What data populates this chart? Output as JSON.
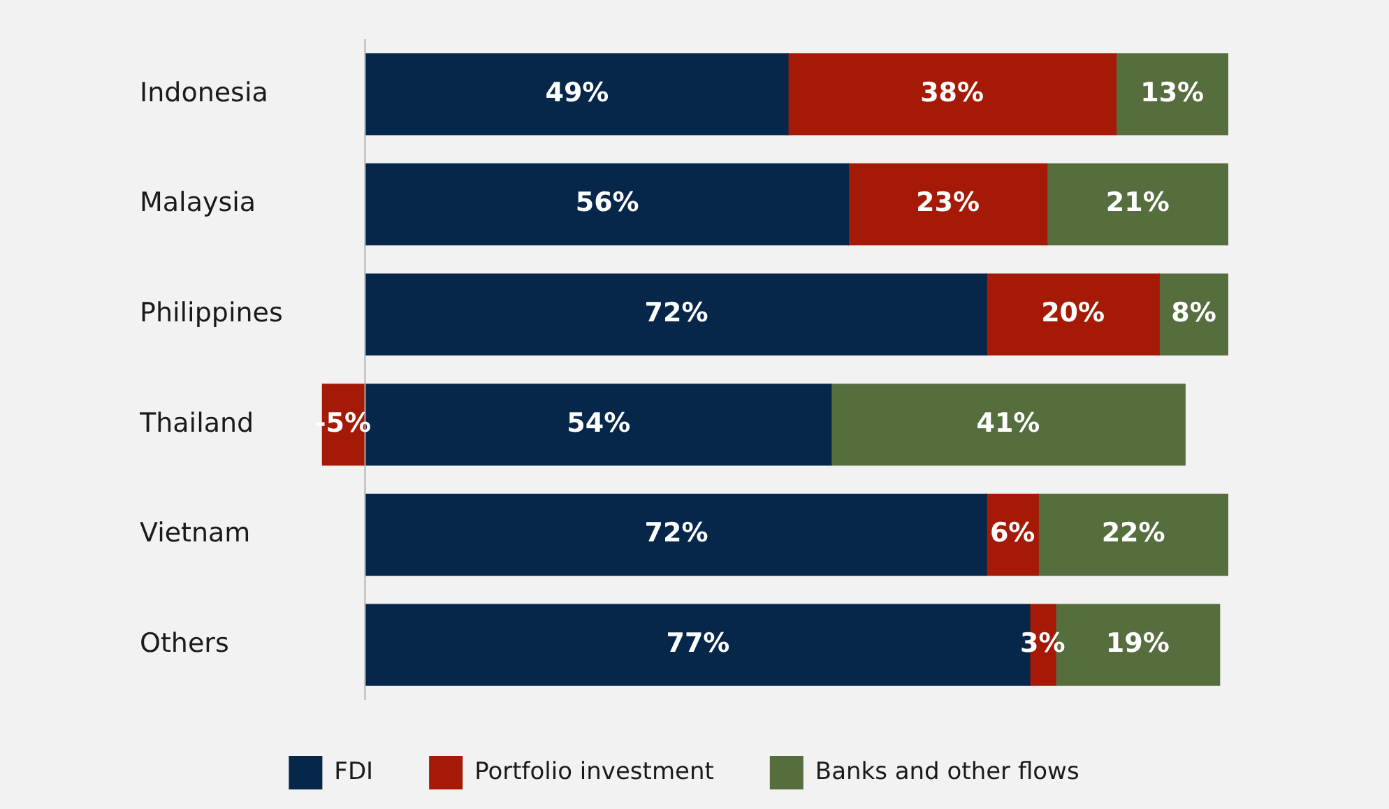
{
  "chart_data": {
    "type": "bar",
    "orientation": "horizontal",
    "stacked": true,
    "relative": false,
    "categories": [
      "Indonesia",
      "Malaysia",
      "Philippines",
      "Thailand",
      "Vietnam",
      "Others"
    ],
    "series": [
      {
        "name": "FDI",
        "color": "#06274a",
        "values": [
          49,
          56,
          72,
          54,
          72,
          77
        ],
        "value_labels": [
          "49%",
          "56%",
          "72%",
          "54%",
          "72%",
          "77%"
        ]
      },
      {
        "name": "Portfolio investment",
        "color": "#a51a06",
        "values": [
          38,
          23,
          20,
          -5,
          6,
          3
        ],
        "value_labels": [
          "38%",
          "23%",
          "20%",
          "-5%",
          "6%",
          "3%"
        ]
      },
      {
        "name": "Banks and other flows",
        "color": "#566e3e",
        "values": [
          13,
          21,
          8,
          41,
          22,
          19
        ],
        "value_labels": [
          "13%",
          "21%",
          "8%",
          "41%",
          "22%",
          "19%"
        ]
      }
    ],
    "legend": "bottom"
  }
}
